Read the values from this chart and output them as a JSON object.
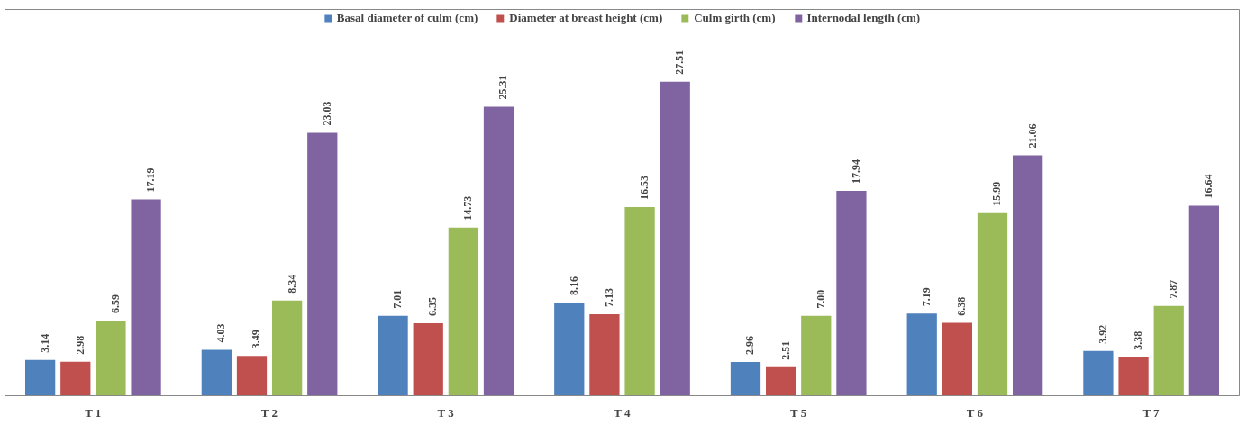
{
  "chart_data": {
    "type": "bar",
    "categories": [
      "T 1",
      "T 2",
      "T 3",
      "T 4",
      "T 5",
      "T 6",
      "T 7"
    ],
    "series": [
      {
        "name": "Basal diameter of culm (cm)",
        "color": "#4f81bd",
        "values": [
          3.14,
          4.03,
          7.01,
          8.16,
          2.96,
          7.19,
          3.92
        ],
        "value_labels": [
          "3.14",
          "4.03",
          "7.01",
          "8.16",
          "2.96",
          "7.19",
          "3.92"
        ]
      },
      {
        "name": "Diameter at breast height (cm)",
        "color": "#c0504d",
        "values": [
          2.98,
          3.49,
          6.35,
          7.13,
          2.51,
          6.38,
          3.38
        ],
        "value_labels": [
          "2.98",
          "3.49",
          "6.35",
          "7.13",
          "2.51",
          "6.38",
          "3.38"
        ]
      },
      {
        "name": "Culm girth (cm)",
        "color": "#9bbb59",
        "values": [
          6.59,
          8.34,
          14.73,
          16.53,
          7.0,
          15.99,
          7.87
        ],
        "value_labels": [
          "6.59",
          "8.34",
          "14.73",
          "16.53",
          "7.00",
          "15.99",
          "7.87"
        ]
      },
      {
        "name": "Internodal length (cm)",
        "color": "#8064a2",
        "values": [
          17.19,
          23.03,
          25.31,
          27.51,
          17.94,
          21.06,
          16.64
        ],
        "value_labels": [
          "17.19",
          "23.03",
          "25.31",
          "27.51",
          "17.94",
          "21.06",
          "16.64"
        ]
      }
    ],
    "legend": "top",
    "grid": false,
    "tick_labels": "x"
  }
}
